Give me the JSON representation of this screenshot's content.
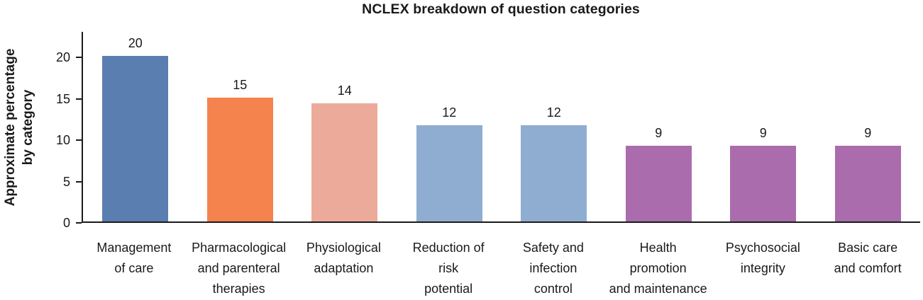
{
  "chart_data": {
    "type": "bar",
    "title": "NCLEX breakdown of question categories",
    "xlabel": "",
    "ylabel": "Approximate percentage by category",
    "ylabel_lines": [
      "Approximate percentage",
      "by category"
    ],
    "ylim": [
      0,
      23.1
    ],
    "yticks": [
      0,
      5,
      10,
      15,
      20
    ],
    "grid": false,
    "legend": "none",
    "categories": [
      "Management of care",
      "Pharmacological and parenteral therapies",
      "Physiological adaptation",
      "Reduction of risk potential",
      "Safety and infection control",
      "Health promotion and maintenance",
      "Psychosocial integrity",
      "Basic care and comfort"
    ],
    "category_label_lines": [
      [
        "Management",
        "of care"
      ],
      [
        "Pharmacological",
        "and parenteral",
        "therapies"
      ],
      [
        "Physiological",
        "adaptation"
      ],
      [
        "Reduction of",
        "risk",
        "potential"
      ],
      [
        "Safety and",
        "infection",
        "control"
      ],
      [
        "Health",
        "promotion",
        "and maintenance"
      ],
      [
        "Psychosocial",
        "integrity"
      ],
      [
        "Basic care",
        "and comfort"
      ]
    ],
    "data_labels": [
      "20",
      "15",
      "14",
      "12",
      "12",
      "9",
      "9",
      "9"
    ],
    "values": [
      20,
      15,
      14.3,
      11.6,
      11.6,
      9.2,
      9.2,
      9.2
    ],
    "bar_colors": [
      "#5b7eb0",
      "#f5834e",
      "#ecaa9b",
      "#8fadd0",
      "#8fadd0",
      "#aa6cad",
      "#aa6cad",
      "#aa6cad"
    ],
    "axis_color": "#1a1a1a",
    "text_color": "#1a1a1a"
  }
}
